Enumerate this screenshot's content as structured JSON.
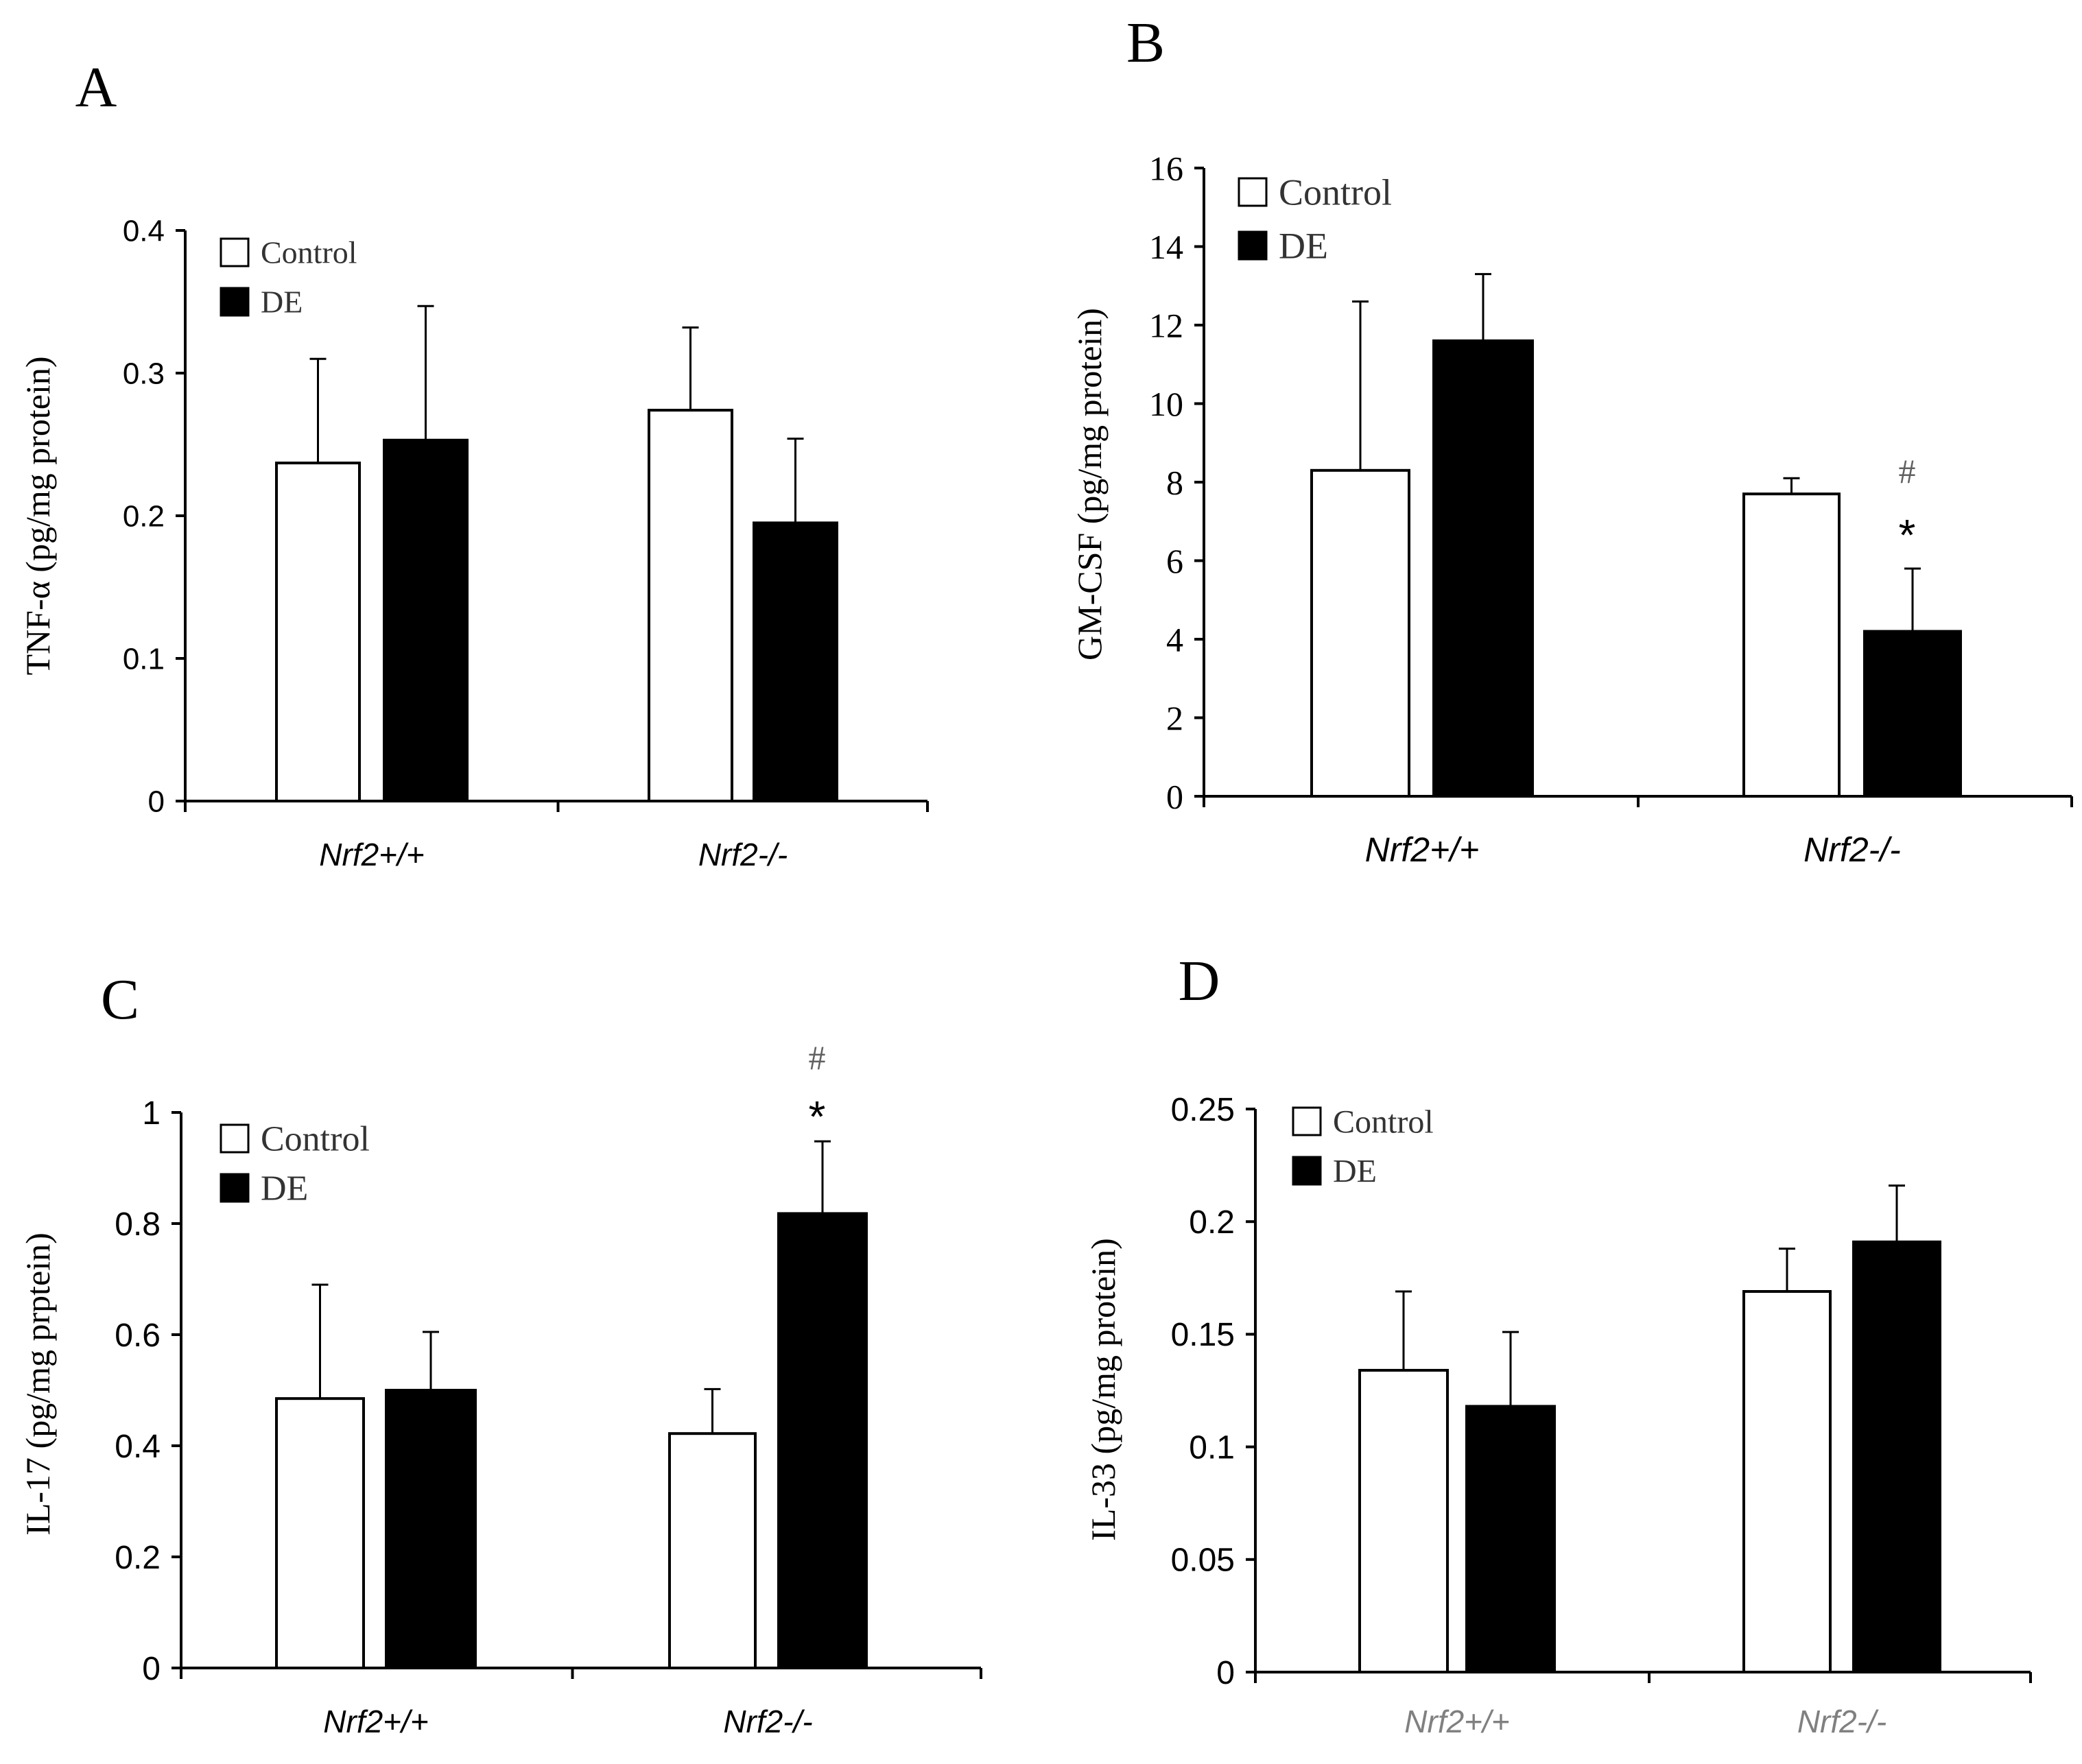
{
  "legend": {
    "control": "Control",
    "de": "DE"
  },
  "colors": {
    "control": "#ffffff",
    "de": "#000000",
    "axis": "#000000",
    "muted_category": "#808080"
  },
  "chart_data": [
    {
      "panel": "A",
      "type": "bar",
      "ylabel": "TNF-α (pg/mg protein)",
      "categories": [
        "Nrf2+/+",
        "Nrf2-/-"
      ],
      "ylim": [
        0,
        0.4
      ],
      "yticks": [
        0,
        0.1,
        0.2,
        0.3,
        0.4
      ],
      "ytick_labels": [
        "0",
        "0.1",
        "0.2",
        "0.3",
        "0.4"
      ],
      "series": [
        {
          "name": "Control",
          "values": [
            0.237,
            0.274
          ],
          "errors": [
            0.073,
            0.058
          ]
        },
        {
          "name": "DE",
          "values": [
            0.253,
            0.195
          ],
          "errors": [
            0.094,
            0.059
          ]
        }
      ],
      "annotations": []
    },
    {
      "panel": "B",
      "type": "bar",
      "ylabel": "GM-CSF (pg/mg protein)",
      "categories": [
        "Nrf2+/+",
        "Nrf2-/-"
      ],
      "ylim": [
        0,
        16
      ],
      "yticks": [
        0,
        2,
        4,
        6,
        8,
        10,
        12,
        14,
        16
      ],
      "ytick_labels": [
        "0",
        "2",
        "4",
        "6",
        "8",
        "10",
        "12",
        "14",
        "16"
      ],
      "series": [
        {
          "name": "Control",
          "values": [
            8.3,
            7.7
          ],
          "errors": [
            4.3,
            0.4
          ]
        },
        {
          "name": "DE",
          "values": [
            11.6,
            4.2
          ],
          "errors": [
            1.7,
            1.6
          ]
        }
      ],
      "annotations": [
        {
          "text": "#",
          "series": 1,
          "category": 1,
          "level": 8.3
        },
        {
          "text": "*",
          "series": 1,
          "category": 1,
          "level": 6.9
        }
      ]
    },
    {
      "panel": "C",
      "type": "bar",
      "ylabel": "IL-17 (pg/mg prptein)",
      "categories": [
        "Nrf2+/+",
        "Nrf2-/-"
      ],
      "ylim": [
        0,
        1
      ],
      "yticks": [
        0,
        0.2,
        0.4,
        0.6,
        0.8,
        1
      ],
      "ytick_labels": [
        "0",
        "0.2",
        "0.4",
        "0.6",
        "0.8",
        "1"
      ],
      "series": [
        {
          "name": "Control",
          "values": [
            0.485,
            0.422
          ],
          "errors": [
            0.205,
            0.08
          ]
        },
        {
          "name": "DE",
          "values": [
            0.5,
            0.818
          ],
          "errors": [
            0.105,
            0.13
          ]
        }
      ],
      "annotations": [
        {
          "text": "#",
          "series": 1,
          "category": 1,
          "level": 1.1
        },
        {
          "text": "*",
          "series": 1,
          "category": 1,
          "level": 1.01
        }
      ]
    },
    {
      "panel": "D",
      "type": "bar",
      "ylabel": "IL-33 (pg/mg protein)",
      "categories": [
        "Nrf2+/+",
        "Nrf2-/-"
      ],
      "ylim": [
        0,
        0.25
      ],
      "yticks": [
        0,
        0.05,
        0.1,
        0.15,
        0.2,
        0.25
      ],
      "ytick_labels": [
        "0",
        "0.05",
        "0.1",
        "0.15",
        "0.2",
        "0.25"
      ],
      "series": [
        {
          "name": "Control",
          "values": [
            0.134,
            0.169
          ],
          "errors": [
            0.035,
            0.019
          ]
        },
        {
          "name": "DE",
          "values": [
            0.118,
            0.191
          ],
          "errors": [
            0.033,
            0.025
          ]
        }
      ],
      "annotations": []
    }
  ]
}
